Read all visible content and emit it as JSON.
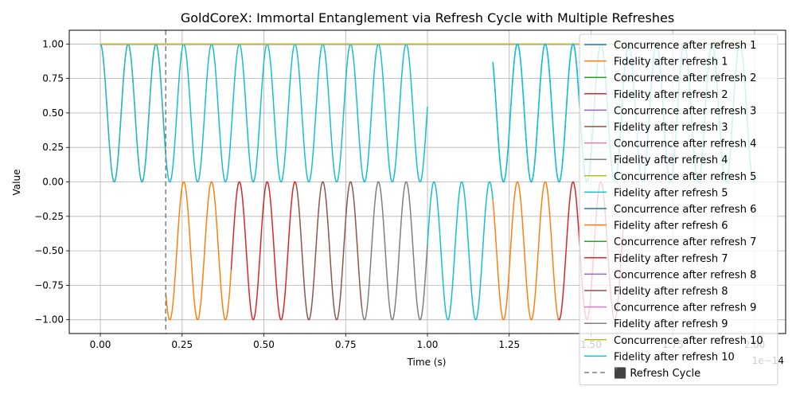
{
  "chart_data": {
    "type": "line",
    "title": "GoldCoreX: Immortal Entanglement via Refresh Cycle with Multiple Refreshes",
    "xlabel": "Time (s)",
    "ylabel": "Value",
    "x_offset_label": "1e−14",
    "xlim": [
      -0.095,
      2.095
    ],
    "ylim": [
      -1.1,
      1.1
    ],
    "xticks": [
      0.0,
      0.25,
      0.5,
      0.75,
      1.0,
      1.25,
      1.5,
      1.75,
      2.0
    ],
    "xtick_labels": [
      "0.00",
      "0.25",
      "0.50",
      "0.75",
      "1.00",
      "1.25",
      "1.50",
      "1.75",
      "2.00"
    ],
    "yticks": [
      -1.0,
      -0.75,
      -0.5,
      -0.25,
      0.0,
      0.25,
      0.5,
      0.75,
      1.0
    ],
    "ytick_labels": [
      "−1.00",
      "−0.75",
      "−0.50",
      "−0.25",
      "0.00",
      "0.25",
      "0.50",
      "0.75",
      "1.00"
    ],
    "grid": true,
    "legend_position": "right",
    "oscillation_period": 0.085,
    "refresh_cycle_x": 0.2,
    "series": [
      {
        "name": "Concurrence after refresh 1",
        "kind": "concurrence",
        "color": "#1f77b4",
        "value": 1.0
      },
      {
        "name": "Fidelity after refresh 1",
        "kind": "fidelity",
        "color": "#ff7f0e",
        "segments": [
          {
            "x0": 0.0,
            "x1": 0.2,
            "mode": "pos"
          },
          {
            "x0": 0.2,
            "x1": 0.4,
            "mode": "neg"
          },
          {
            "x0": 1.2,
            "x1": 1.4,
            "mode": "neg"
          }
        ]
      },
      {
        "name": "Concurrence after refresh 2",
        "kind": "concurrence",
        "color": "#2ca02c",
        "value": 1.0
      },
      {
        "name": "Fidelity after refresh 2",
        "kind": "fidelity",
        "color": "#d62728",
        "segments": [
          {
            "x0": 0.4,
            "x1": 0.6,
            "mode": "neg"
          },
          {
            "x0": 1.4,
            "x1": 1.6,
            "mode": "neg"
          }
        ]
      },
      {
        "name": "Concurrence after refresh 3",
        "kind": "concurrence",
        "color": "#9467bd",
        "value": 1.0
      },
      {
        "name": "Fidelity after refresh 3",
        "kind": "fidelity",
        "color": "#8c564b",
        "segments": [
          {
            "x0": 0.6,
            "x1": 0.8,
            "mode": "neg"
          }
        ]
      },
      {
        "name": "Concurrence after refresh 4",
        "kind": "concurrence",
        "color": "#e377c2",
        "value": 1.0
      },
      {
        "name": "Fidelity after refresh 4",
        "kind": "fidelity",
        "color": "#7f7f7f",
        "segments": [
          {
            "x0": 0.8,
            "x1": 1.0,
            "mode": "neg"
          }
        ]
      },
      {
        "name": "Concurrence after refresh 5",
        "kind": "concurrence",
        "color": "#bcbd22",
        "value": 1.0
      },
      {
        "name": "Fidelity after refresh 5",
        "kind": "fidelity",
        "color": "#17becf",
        "segments": [
          {
            "x0": 0.0,
            "x1": 1.0,
            "mode": "pos"
          },
          {
            "x0": 1.0,
            "x1": 1.2,
            "mode": "neg"
          },
          {
            "x0": 1.2,
            "x1": 2.0,
            "mode": "pos"
          }
        ]
      },
      {
        "name": "Concurrence after refresh 6",
        "kind": "concurrence",
        "color": "#1f77b4",
        "value": 1.0
      },
      {
        "name": "Fidelity after refresh 6",
        "kind": "fidelity",
        "color": "#ff7f0e",
        "segments": []
      },
      {
        "name": "Concurrence after refresh 7",
        "kind": "concurrence",
        "color": "#2ca02c",
        "value": 1.0
      },
      {
        "name": "Fidelity after refresh 7",
        "kind": "fidelity",
        "color": "#d62728",
        "segments": []
      },
      {
        "name": "Concurrence after refresh 8",
        "kind": "concurrence",
        "color": "#9467bd",
        "value": 1.0
      },
      {
        "name": "Fidelity after refresh 8",
        "kind": "fidelity",
        "color": "#8c564b",
        "segments": []
      },
      {
        "name": "Concurrence after refresh 9",
        "kind": "concurrence",
        "color": "#e377c2",
        "value": 1.0
      },
      {
        "name": "Fidelity after refresh 9",
        "kind": "fidelity",
        "color": "#7f7f7f",
        "segments": []
      },
      {
        "name": "Concurrence after refresh 10",
        "kind": "concurrence",
        "color": "#bcbd22",
        "value": 1.0
      },
      {
        "name": "Fidelity after refresh 10",
        "kind": "fidelity",
        "color": "#17becf",
        "segments": [
          {
            "x0": 1.2,
            "x1": 2.0,
            "mode": "pos"
          }
        ]
      }
    ],
    "refresh_line": {
      "name": "⬛ Refresh Cycle",
      "color": "#7f7f7f",
      "style": "dashed"
    }
  }
}
